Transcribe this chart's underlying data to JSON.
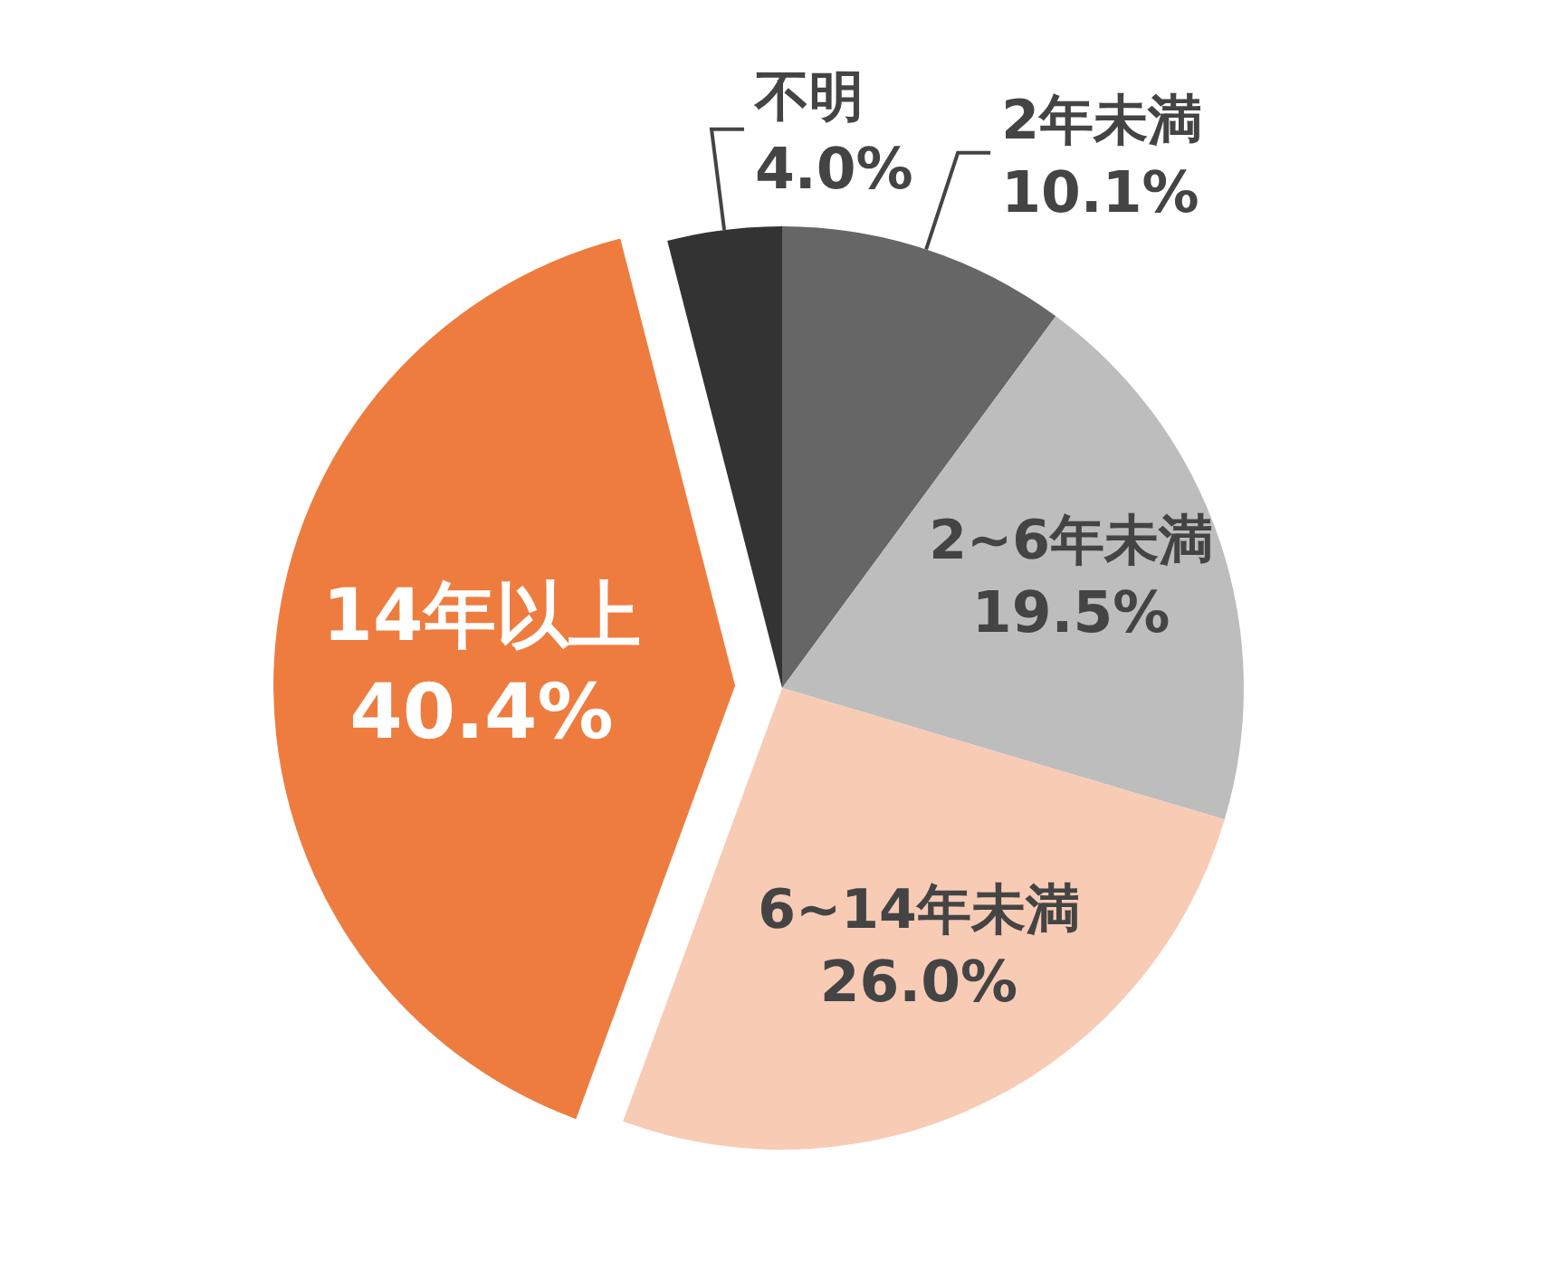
{
  "chart_data": {
    "type": "pie",
    "categories": [
      "2年未満",
      "2~6年未満",
      "6~14年未満",
      "14年以上",
      "不明"
    ],
    "values": [
      10.1,
      19.5,
      26.0,
      40.4,
      4.0
    ],
    "value_labels": [
      "10.1%",
      "19.5%",
      "26.0%",
      "40.4%",
      "4.0%"
    ],
    "colors": [
      "#666666",
      "#bdbdbd",
      "#f8cbb5",
      "#ee7c3f",
      "#333333"
    ]
  }
}
